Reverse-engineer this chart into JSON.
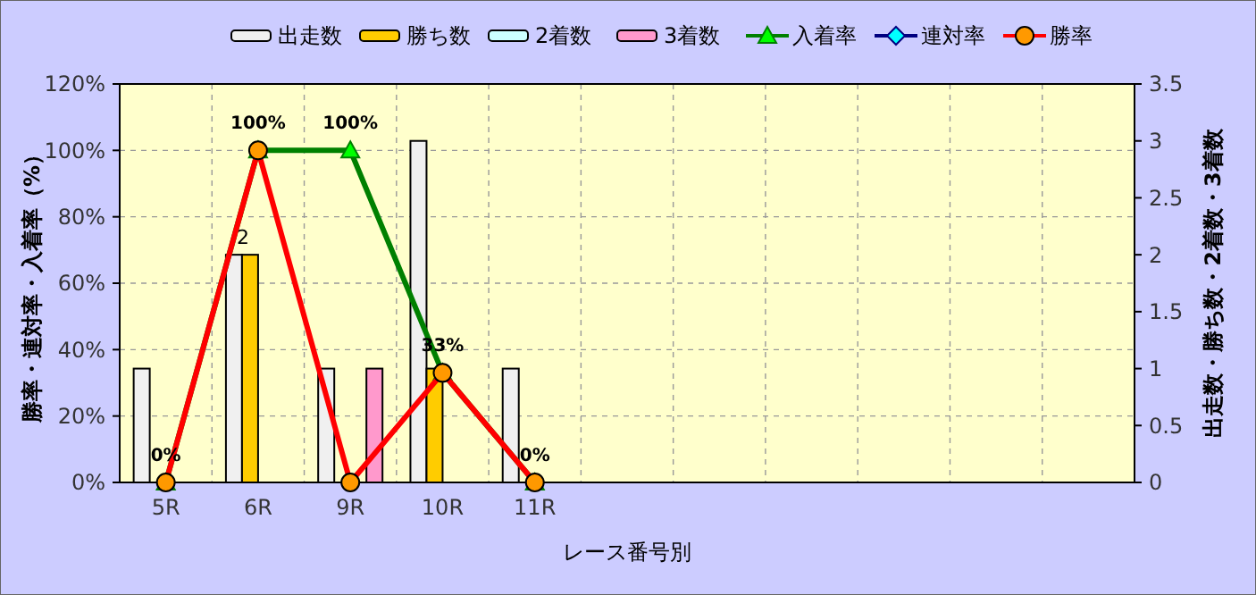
{
  "chart_data": {
    "type": "bar",
    "xlabel": "レース番号別",
    "ylabel": "勝率・連対率・入着率（%）",
    "y2label": "出走数・勝ち数・2着数・3着数",
    "categories": [
      "5R",
      "6R",
      "9R",
      "10R",
      "11R",
      null,
      null,
      null,
      null,
      null,
      null
    ],
    "series": [
      {
        "name": "出走数",
        "color": "#f0f0f0",
        "axis": "y2",
        "values": [
          1,
          2,
          1,
          3,
          1,
          null,
          null,
          null,
          null,
          null,
          null
        ]
      },
      {
        "name": "勝ち数",
        "color": "#ffcc00",
        "axis": "y2",
        "values": [
          0,
          2,
          0,
          1,
          0,
          null,
          null,
          null,
          null,
          null,
          null
        ],
        "value_labels": [
          null,
          "2",
          null,
          null,
          null,
          null,
          null,
          null,
          null,
          null,
          null
        ]
      },
      {
        "name": "2着数",
        "color": "#ccffff",
        "axis": "y2",
        "values": [
          0,
          0,
          0,
          0,
          0,
          null,
          null,
          null,
          null,
          null,
          null
        ]
      },
      {
        "name": "3着数",
        "color": "#ff99cc",
        "axis": "y2",
        "values": [
          0,
          0,
          1,
          0,
          0,
          null,
          null,
          null,
          null,
          null,
          null
        ]
      },
      {
        "name": "入着率",
        "type": "line",
        "color": "#008000",
        "marker": "triangle",
        "values": [
          0,
          100,
          100,
          33,
          0,
          null,
          null,
          null,
          null,
          null,
          null
        ],
        "value_labels": [
          "0%",
          "100%",
          "100%",
          "33%",
          "0%",
          null,
          null,
          null,
          null,
          null,
          null
        ]
      },
      {
        "name": "連対率",
        "type": "line",
        "color": "#000080",
        "marker": "diamond",
        "values": [
          null,
          null,
          null,
          null,
          null,
          null,
          null,
          null,
          null,
          null,
          null
        ]
      },
      {
        "name": "勝率",
        "type": "line",
        "color": "#ff0000",
        "marker": "circle",
        "values": [
          0,
          100,
          0,
          33,
          0,
          null,
          null,
          null,
          null,
          null,
          null
        ]
      }
    ],
    "ylim": [
      0,
      120
    ],
    "yticks": [
      {
        "value": 0,
        "label": "0%"
      },
      {
        "value": 20,
        "label": "20%"
      },
      {
        "value": 40,
        "label": "40%"
      },
      {
        "value": 60,
        "label": "60%"
      },
      {
        "value": 80,
        "label": "80%"
      },
      {
        "value": 100,
        "label": "100%"
      },
      {
        "value": 120,
        "label": "120%"
      }
    ],
    "y2lim": [
      0,
      3.5
    ],
    "y2ticks": [
      0,
      0.5,
      1,
      1.5,
      2,
      2.5,
      3,
      3.5
    ],
    "grid": true,
    "legend": "top"
  }
}
